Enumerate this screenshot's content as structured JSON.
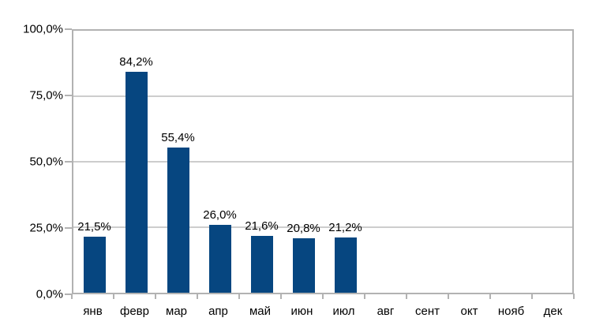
{
  "chart_data": {
    "type": "bar",
    "title": "",
    "xlabel": "",
    "ylabel": "",
    "categories": [
      "янв",
      "февр",
      "мар",
      "апр",
      "май",
      "июн",
      "июл",
      "авг",
      "сент",
      "окт",
      "нояб",
      "дек"
    ],
    "values": [
      21.5,
      84.2,
      55.4,
      26.0,
      21.6,
      20.8,
      21.2,
      null,
      null,
      null,
      null,
      null
    ],
    "data_labels": [
      "21,5%",
      "84,2%",
      "55,4%",
      "26,0%",
      "21,6%",
      "20,8%",
      "21,2%",
      null,
      null,
      null,
      null,
      null
    ],
    "y_ticks": [
      {
        "value": 100,
        "label": "100,0%"
      },
      {
        "value": 75,
        "label": "75,0%"
      },
      {
        "value": 50,
        "label": "50,0%"
      },
      {
        "value": 25,
        "label": "25,0%"
      },
      {
        "value": 0,
        "label": "0,0%"
      }
    ],
    "ylim": [
      0,
      100
    ],
    "grid": true,
    "legend": false,
    "colors": {
      "bar": "#064680",
      "gridline": "#cdcdcd",
      "axis": "#b2b2b2",
      "text": "#000000",
      "background": "#ffffff"
    }
  }
}
